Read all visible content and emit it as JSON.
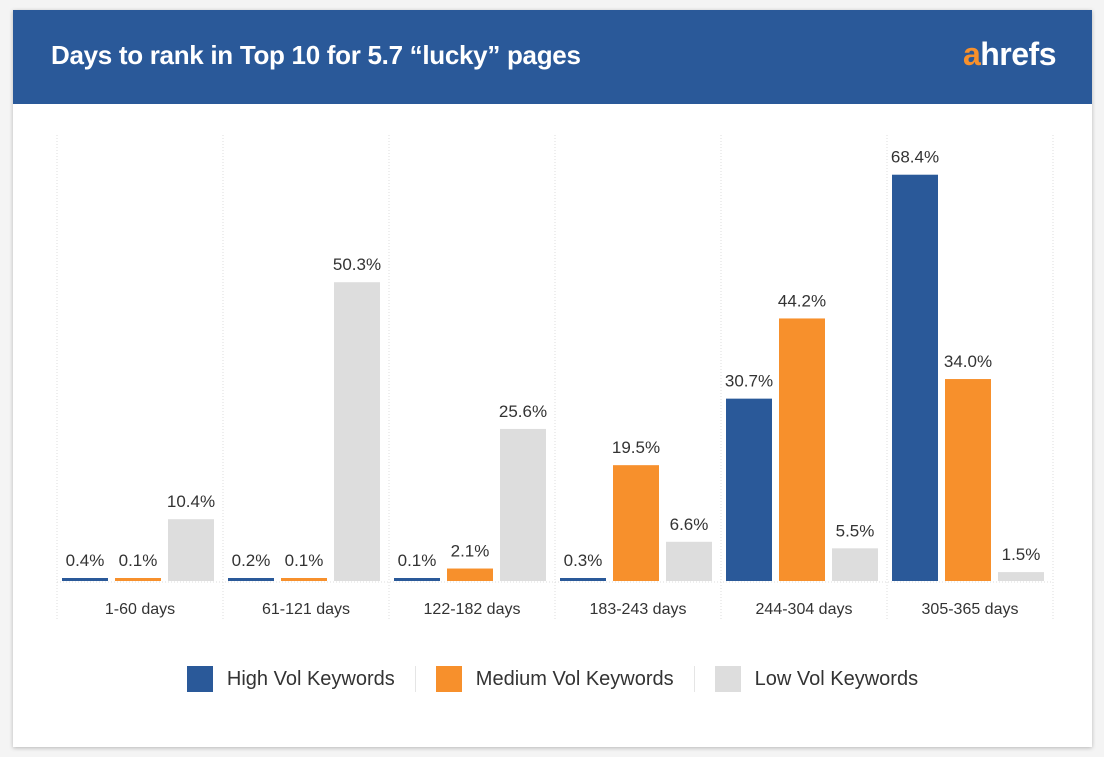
{
  "header": {
    "title": "Days to rank in Top 10 for 5.7 “lucky” pages",
    "logo_text": "ahrefs"
  },
  "colors": {
    "header": "#2A5999",
    "high": "#2A5999",
    "medium": "#F7902C",
    "low": "#DDDDDD"
  },
  "chart_data": {
    "type": "bar",
    "title": "Days to rank in Top 10 for 5.7 “lucky” pages",
    "categories": [
      "1-60 days",
      "61-121 days",
      "122-182 days",
      "183-243 days",
      "244-304 days",
      "305-365 days"
    ],
    "series": [
      {
        "name": "High Vol Keywords",
        "color": "#2A5999",
        "values": [
          0.4,
          0.2,
          0.1,
          0.3,
          30.7,
          68.4
        ],
        "labels": [
          "0.4%",
          "0.2%",
          "0.1%",
          "0.3%",
          "30.7%",
          "68.4%"
        ]
      },
      {
        "name": "Medium Vol Keywords",
        "color": "#F7902C",
        "values": [
          0.1,
          0.1,
          2.1,
          19.5,
          44.2,
          34.0
        ],
        "labels": [
          "0.1%",
          "0.1%",
          "2.1%",
          "19.5%",
          "44.2%",
          "34.0%"
        ]
      },
      {
        "name": "Low Vol Keywords",
        "color": "#DDDDDD",
        "values": [
          10.4,
          50.3,
          25.6,
          6.6,
          5.5,
          1.5
        ],
        "labels": [
          "10.4%",
          "50.3%",
          "25.6%",
          "6.6%",
          "5.5%",
          "1.5%"
        ]
      }
    ],
    "legend": "bottom",
    "grid": "vertical dotted separators"
  }
}
